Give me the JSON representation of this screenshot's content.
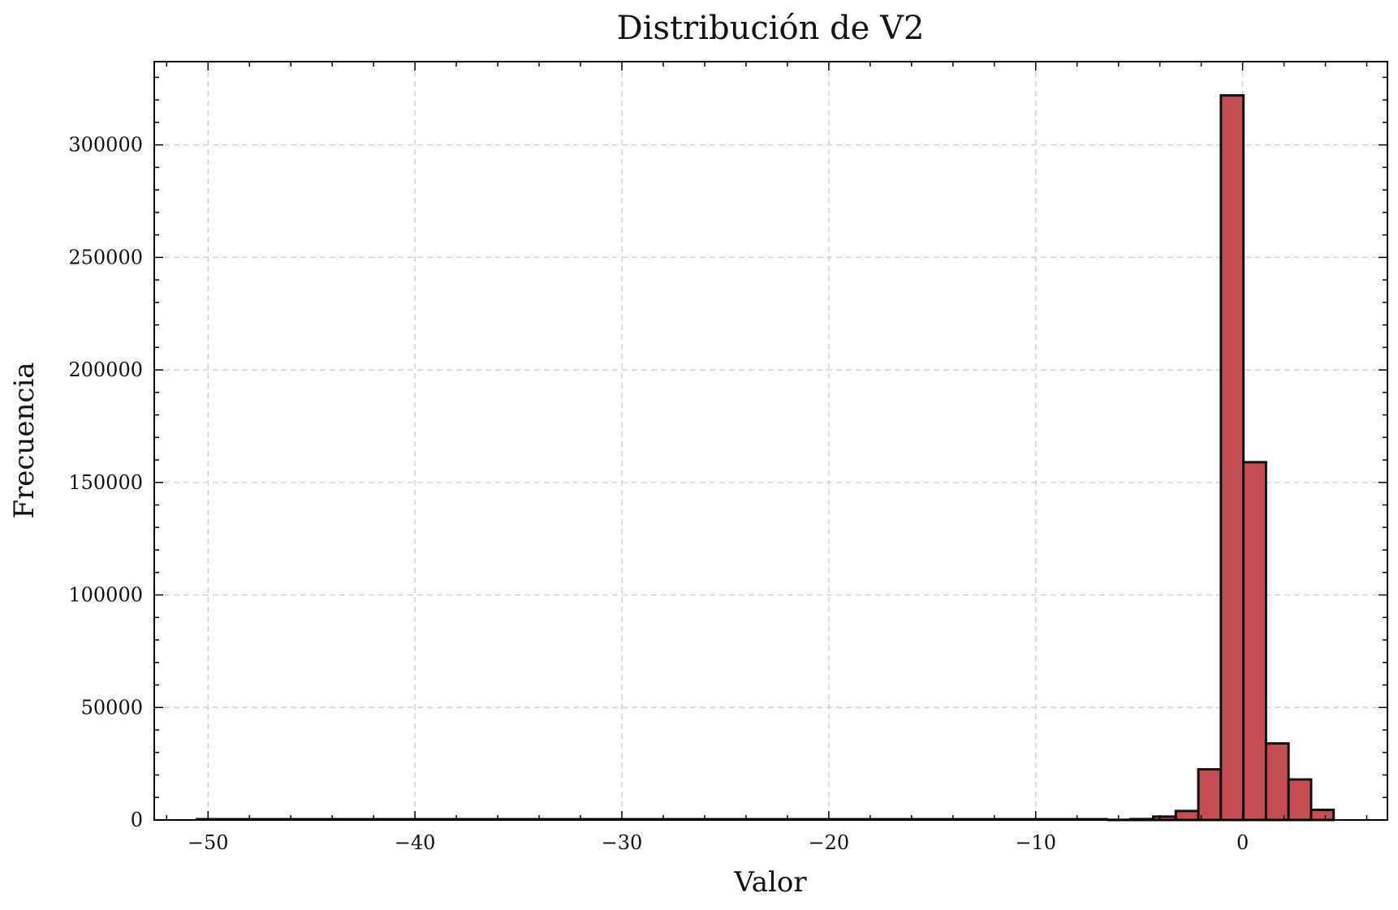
{
  "chart_data": {
    "type": "bar",
    "title": "Distribución de V2",
    "xlabel": "Valor",
    "ylabel": "Frecuencia",
    "xlim": [
      -52.6,
      7.0
    ],
    "ylim": [
      0,
      337000
    ],
    "x_ticks": [
      {
        "value": -50,
        "label": "−50"
      },
      {
        "value": -40,
        "label": "−40"
      },
      {
        "value": -30,
        "label": "−30"
      },
      {
        "value": -20,
        "label": "−20"
      },
      {
        "value": -10,
        "label": "−10"
      },
      {
        "value": 0,
        "label": "0"
      }
    ],
    "y_ticks": [
      {
        "value": 0,
        "label": "0"
      },
      {
        "value": 50000,
        "label": "50000"
      },
      {
        "value": 100000,
        "label": "100000"
      },
      {
        "value": 150000,
        "label": "150000"
      },
      {
        "value": 200000,
        "label": "200000"
      },
      {
        "value": 250000,
        "label": "250000"
      },
      {
        "value": 300000,
        "label": "300000"
      }
    ],
    "grid": true,
    "bar_color": "#c44e52",
    "edge_color": "#111111",
    "bin_width": 1.09,
    "bins": [
      {
        "x0": -6.5,
        "value": 80
      },
      {
        "x0": -5.41,
        "value": 400
      },
      {
        "x0": -4.32,
        "value": 1500
      },
      {
        "x0": -3.23,
        "value": 4000
      },
      {
        "x0": -2.14,
        "value": 22500
      },
      {
        "x0": -1.05,
        "value": 322000
      },
      {
        "x0": 0.04,
        "value": 159000
      },
      {
        "x0": 1.13,
        "value": 34000
      },
      {
        "x0": 2.22,
        "value": 18000
      },
      {
        "x0": 3.31,
        "value": 4500
      }
    ]
  }
}
